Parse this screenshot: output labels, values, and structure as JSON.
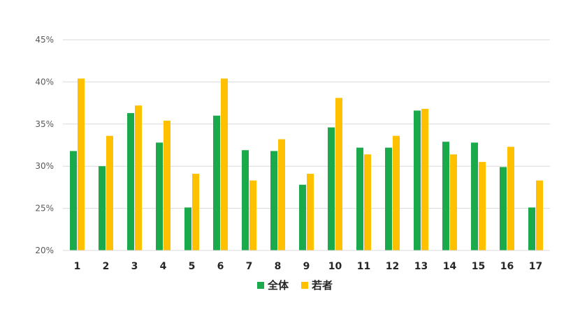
{
  "chart_data": {
    "type": "bar",
    "categories": [
      "1",
      "2",
      "3",
      "4",
      "5",
      "6",
      "7",
      "8",
      "9",
      "10",
      "11",
      "12",
      "13",
      "14",
      "15",
      "16",
      "17"
    ],
    "series": [
      {
        "name": "全体",
        "color": "#1aaa4b",
        "values": [
          31.8,
          30.0,
          36.3,
          32.8,
          25.1,
          36.0,
          31.9,
          31.8,
          27.8,
          34.6,
          32.2,
          32.2,
          36.6,
          32.9,
          32.8,
          29.9,
          25.1
        ]
      },
      {
        "name": "若者",
        "color": "#ffc000",
        "values": [
          40.4,
          33.6,
          37.2,
          35.4,
          29.1,
          40.4,
          28.3,
          33.2,
          29.1,
          38.1,
          31.4,
          33.6,
          36.8,
          31.4,
          30.5,
          32.3,
          28.3
        ]
      }
    ],
    "y_ticks": [
      "20%",
      "25%",
      "30%",
      "35%",
      "40%",
      "45%"
    ],
    "ylim": [
      20,
      45
    ],
    "y_unit": "%",
    "grid": true,
    "legend": "bottom-center"
  }
}
